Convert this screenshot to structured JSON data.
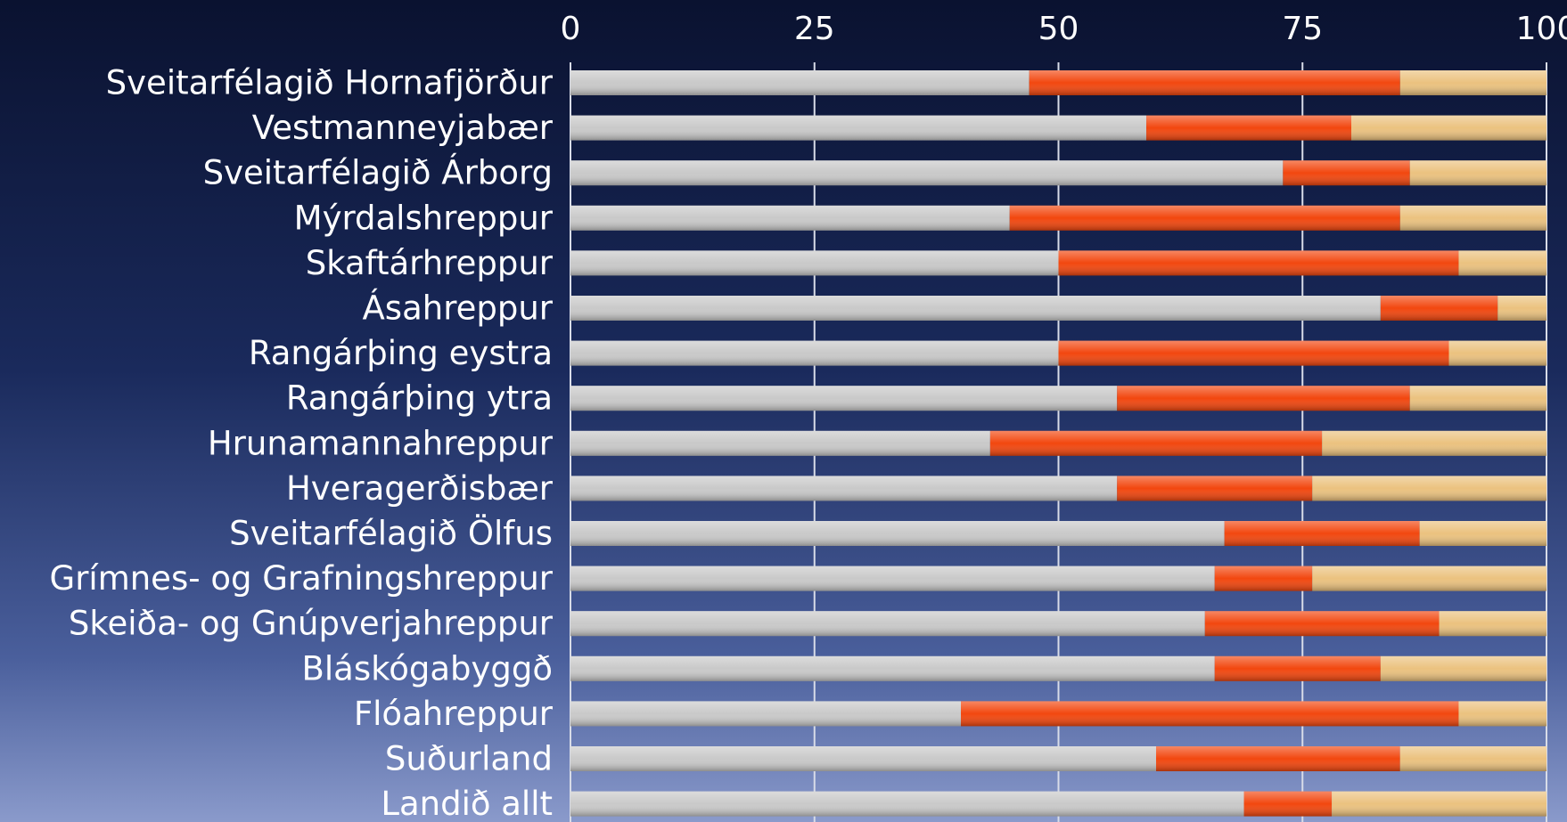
{
  "chart_data": {
    "type": "bar",
    "orientation": "horizontal",
    "stacked": true,
    "categories": [
      "Sveitarfélagið Hornafjörður",
      "Vestmanneyjabær",
      "Sveitarfélagið Árborg",
      "Mýrdalshreppur",
      "Skaftárhreppur",
      "Ásahreppur",
      "Rangárþing eystra",
      "Rangárþing ytra",
      "Hrunamannahreppur",
      "Hveragerðisbær",
      "Sveitarfélagið Ölfus",
      "Grímnes- og Grafningshreppur",
      "Skeiða- og Gnúpverjahreppur",
      "Bláskógabyggð",
      "Flóahreppur",
      "Suðurland",
      "Landið allt"
    ],
    "series": [
      {
        "color": "#c9c9c9",
        "values": [
          47,
          59,
          73,
          45,
          50,
          83,
          50,
          56,
          43,
          56,
          67,
          66,
          65,
          66,
          40,
          60,
          69
        ]
      },
      {
        "color": "#f2470f",
        "values": [
          38,
          21,
          13,
          40,
          41,
          12,
          40,
          30,
          34,
          20,
          20,
          10,
          24,
          17,
          51,
          25,
          9
        ]
      },
      {
        "color": "#ebc27f",
        "values": [
          15,
          20,
          14,
          15,
          9,
          5,
          10,
          14,
          23,
          24,
          13,
          24,
          11,
          17,
          9,
          15,
          22
        ]
      }
    ],
    "xlim": [
      0,
      100
    ],
    "xticks": [
      0,
      25,
      50,
      75,
      100
    ],
    "grid": true
  }
}
